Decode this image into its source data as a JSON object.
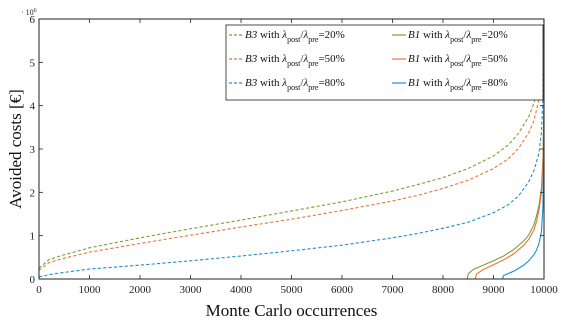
{
  "chart_data": {
    "type": "line",
    "xlabel": "Monte Carlo occurrences",
    "ylabel": "Avoided costs [€]",
    "xlim": [
      0,
      10000
    ],
    "ylim": [
      0,
      6000000
    ],
    "xticks": [
      0,
      1000,
      2000,
      3000,
      4000,
      5000,
      6000,
      7000,
      8000,
      9000,
      10000
    ],
    "yticks": [
      0,
      1,
      2,
      3,
      4,
      5,
      6
    ],
    "y_multiplier": "· 10",
    "y_multiplier_exp": "6",
    "grid": false,
    "legend_position": "top-right",
    "colors": {
      "20": "#7aa034",
      "50": "#e8743b",
      "80": "#1f8ed1"
    },
    "series": [
      {
        "name": "B3 with λpost/λpre=20%",
        "legend": {
          "model": "B3",
          "mid": " with ",
          "pct": "20%"
        },
        "color": "#7aa034",
        "dash": "dashed",
        "points": [
          [
            0,
            250000
          ],
          [
            200,
            450000
          ],
          [
            500,
            560000
          ],
          [
            1000,
            720000
          ],
          [
            2000,
            950000
          ],
          [
            3000,
            1160000
          ],
          [
            4000,
            1360000
          ],
          [
            5000,
            1570000
          ],
          [
            6000,
            1780000
          ],
          [
            7000,
            2030000
          ],
          [
            7500,
            2180000
          ],
          [
            8000,
            2340000
          ],
          [
            8500,
            2550000
          ],
          [
            9000,
            2840000
          ],
          [
            9300,
            3100000
          ],
          [
            9500,
            3370000
          ],
          [
            9700,
            3750000
          ],
          [
            9800,
            4050000
          ],
          [
            9900,
            4550000
          ],
          [
            9950,
            5000000
          ],
          [
            9980,
            5700000
          ],
          [
            10000,
            6000000
          ]
        ]
      },
      {
        "name": "B3 with λpost/λpre=50%",
        "legend": {
          "model": "B3",
          "mid": " with ",
          "pct": "50%"
        },
        "color": "#e8743b",
        "dash": "dashed",
        "points": [
          [
            0,
            200000
          ],
          [
            200,
            380000
          ],
          [
            500,
            480000
          ],
          [
            1000,
            620000
          ],
          [
            2000,
            820000
          ],
          [
            3000,
            1010000
          ],
          [
            4000,
            1200000
          ],
          [
            5000,
            1380000
          ],
          [
            6000,
            1580000
          ],
          [
            7000,
            1800000
          ],
          [
            7500,
            1930000
          ],
          [
            8000,
            2090000
          ],
          [
            8500,
            2280000
          ],
          [
            9000,
            2550000
          ],
          [
            9300,
            2780000
          ],
          [
            9500,
            3020000
          ],
          [
            9700,
            3380000
          ],
          [
            9800,
            3650000
          ],
          [
            9900,
            4150000
          ],
          [
            9950,
            4650000
          ],
          [
            9980,
            5400000
          ],
          [
            10000,
            6000000
          ]
        ]
      },
      {
        "name": "B3 with λpost/λpre=80%",
        "legend": {
          "model": "B3",
          "mid": " with ",
          "pct": "80%"
        },
        "color": "#1f8ed1",
        "dash": "dashed",
        "points": [
          [
            0,
            50000
          ],
          [
            300,
            120000
          ],
          [
            1000,
            230000
          ],
          [
            2000,
            320000
          ],
          [
            3000,
            420000
          ],
          [
            4000,
            530000
          ],
          [
            5000,
            650000
          ],
          [
            6000,
            780000
          ],
          [
            7000,
            950000
          ],
          [
            7500,
            1050000
          ],
          [
            8000,
            1170000
          ],
          [
            8500,
            1310000
          ],
          [
            9000,
            1530000
          ],
          [
            9300,
            1720000
          ],
          [
            9500,
            1920000
          ],
          [
            9700,
            2250000
          ],
          [
            9800,
            2500000
          ],
          [
            9900,
            2900000
          ],
          [
            9950,
            3400000
          ],
          [
            9980,
            4200000
          ],
          [
            10000,
            5000000
          ]
        ]
      },
      {
        "name": "B1 with λpost/λpre=20%",
        "legend": {
          "model": "B1",
          "mid": " with ",
          "pct": "20%"
        },
        "color": "#7aa034",
        "dash": "solid",
        "points": [
          [
            8480,
            0
          ],
          [
            8500,
            120000
          ],
          [
            8600,
            220000
          ],
          [
            8800,
            320000
          ],
          [
            9000,
            420000
          ],
          [
            9200,
            530000
          ],
          [
            9400,
            680000
          ],
          [
            9600,
            880000
          ],
          [
            9700,
            1020000
          ],
          [
            9800,
            1250000
          ],
          [
            9850,
            1450000
          ],
          [
            9900,
            1700000
          ],
          [
            9950,
            2100000
          ],
          [
            9980,
            2800000
          ],
          [
            10000,
            4200000
          ]
        ]
      },
      {
        "name": "B1 with λpost/λpre=50%",
        "legend": {
          "model": "B1",
          "mid": " with ",
          "pct": "50%"
        },
        "color": "#e8743b",
        "dash": "solid",
        "points": [
          [
            8640,
            0
          ],
          [
            8660,
            110000
          ],
          [
            8800,
            220000
          ],
          [
            9000,
            330000
          ],
          [
            9200,
            440000
          ],
          [
            9400,
            580000
          ],
          [
            9600,
            780000
          ],
          [
            9700,
            920000
          ],
          [
            9800,
            1130000
          ],
          [
            9850,
            1320000
          ],
          [
            9900,
            1580000
          ],
          [
            9950,
            2000000
          ],
          [
            9980,
            2700000
          ],
          [
            10000,
            4100000
          ]
        ]
      },
      {
        "name": "B1 with λpost/λpre=80%",
        "legend": {
          "model": "B1",
          "mid": " with ",
          "pct": "80%"
        },
        "color": "#1f8ed1",
        "dash": "solid",
        "points": [
          [
            9180,
            0
          ],
          [
            9200,
            80000
          ],
          [
            9400,
            180000
          ],
          [
            9600,
            320000
          ],
          [
            9700,
            420000
          ],
          [
            9800,
            560000
          ],
          [
            9850,
            660000
          ],
          [
            9900,
            820000
          ],
          [
            9950,
            1100000
          ],
          [
            9980,
            1700000
          ],
          [
            10000,
            3900000
          ]
        ]
      }
    ]
  }
}
